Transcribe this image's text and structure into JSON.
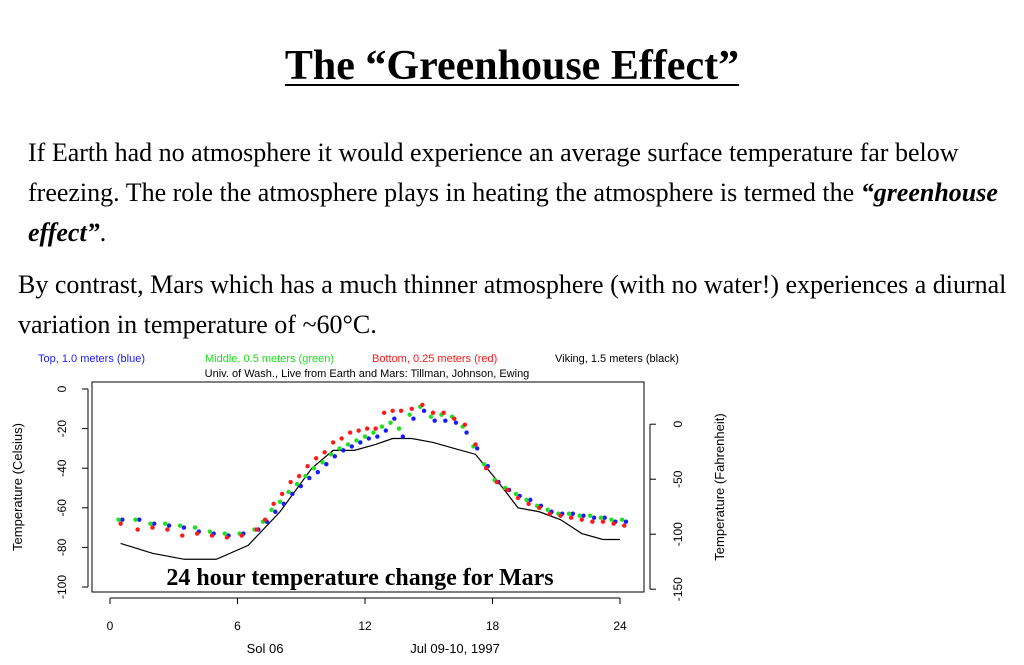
{
  "slide": {
    "title": "The “Greenhouse Effect”",
    "para1_before": "If Earth had no atmosphere it would experience an average surface temperature far below freezing.  The role the atmosphere plays in heating the atmosphere is termed the ",
    "para1_emphasis": "“greenhouse effect”",
    "para1_after": ".",
    "para2": "By contrast, Mars which has a much thinner atmosphere (with no water!) experiences a diurnal variation in temperature of ~60°C.",
    "caption": "24 hour temperature change for Mars"
  },
  "chart_data": {
    "type": "scatter",
    "legend": [
      {
        "text": "Top, 1.0 meters (blue)",
        "color": "#1a1aff"
      },
      {
        "text": "Middle, 0.5 meters (green)",
        "color": "#1ee01e"
      },
      {
        "text": "Bottom, 0.25 meters (red)",
        "color": "#ff1a1a"
      },
      {
        "text": "Viking, 1.5 meters (black)",
        "color": "#000000"
      }
    ],
    "subtitle": "Univ. of Wash., Live from Earth and Mars:  Tillman, Johnson, Ewing",
    "ylabel": "Temperature (Celsius)",
    "y2label": "Temperature (Fahrenheit)",
    "xlabel_left": "Sol 06",
    "xlabel_right": "Jul 09-10, 1997",
    "xlim": [
      0,
      25
    ],
    "ylim": [
      -100,
      5
    ],
    "xticks": [
      0,
      6,
      12,
      18,
      24
    ],
    "yticks": [
      0,
      -20,
      -40,
      -60,
      -80,
      -100
    ],
    "y2ticks": [
      0,
      -50,
      -100,
      -150
    ],
    "x": [
      0.5,
      1.3,
      2,
      2.7,
      3.4,
      4.1,
      4.8,
      5.5,
      6.2,
      6.9,
      7.3,
      7.7,
      8.1,
      8.5,
      8.9,
      9.3,
      9.7,
      10.1,
      10.5,
      10.9,
      11.3,
      11.7,
      12.1,
      12.5,
      12.9,
      13.3,
      13.7,
      14.2,
      14.7,
      15.2,
      15.7,
      16.2,
      16.7,
      17.2,
      17.7,
      18.2,
      18.7,
      19.2,
      19.7,
      20.2,
      20.7,
      21.2,
      21.7,
      22.2,
      22.7,
      23.2,
      23.7,
      24.2
    ],
    "series": [
      {
        "name": "Top, 1.0 meters (blue)",
        "color": "#1a1aff",
        "offset": 0.08,
        "values": [
          -66,
          -66,
          -68,
          -69,
          -70,
          -72,
          -73,
          -74,
          -73,
          -71,
          -67,
          -62,
          -58,
          -53,
          -49,
          -45,
          -42,
          -38,
          -34,
          -31,
          -29,
          -27,
          -25,
          -24,
          -21,
          -15,
          -24,
          -15,
          -11,
          -16,
          -16,
          -17,
          -22,
          -30,
          -39,
          -47,
          -51,
          -54,
          -56,
          -59,
          -62,
          -63,
          -63,
          -64,
          -65,
          -65,
          -67,
          -67
        ]
      },
      {
        "name": "Middle, 0.5 meters (green)",
        "color": "#1ee01e",
        "offset": -0.1,
        "values": [
          -66,
          -66,
          -68,
          -68,
          -69,
          -70,
          -72,
          -73,
          -73,
          -71,
          -67,
          -61,
          -57,
          -52,
          -48,
          -44,
          -40,
          -37,
          -33,
          -30,
          -28,
          -26,
          -24,
          -22,
          -19,
          -17,
          -20,
          -13,
          -9,
          -14,
          -13,
          -14,
          -19,
          -29,
          -38,
          -46,
          -50,
          -53,
          -56,
          -59,
          -61,
          -63,
          -63,
          -64,
          -64,
          -65,
          -66,
          -66
        ]
      },
      {
        "name": "Bottom, 0.25 meters (red)",
        "color": "#ff1a1a",
        "offset": 0.0,
        "values": [
          -68,
          -71,
          -70,
          -71,
          -74,
          -73,
          -74,
          -75,
          -74,
          -71,
          -66,
          -58,
          -53,
          -47,
          -44,
          -39,
          -35,
          -32,
          -27,
          -25,
          -22,
          -21,
          -20,
          -20,
          -12,
          -11,
          -11,
          -10,
          -8,
          -12,
          -12,
          -15,
          -18,
          -28,
          -40,
          -47,
          -51,
          -55,
          -58,
          -60,
          -63,
          -64,
          -65,
          -66,
          -67,
          -67,
          -68,
          -69
        ]
      }
    ],
    "viking": {
      "name": "Viking, 1.5 meters (black)",
      "color": "#000000",
      "x": [
        0.5,
        2,
        3.5,
        5,
        6.5,
        8,
        9.5,
        10.5,
        11.5,
        12.5,
        13.3,
        14.2,
        15.2,
        16.2,
        17.2,
        18.2,
        19.2,
        20.2,
        21.2,
        22.2,
        23.2,
        24
      ],
      "values": [
        -78,
        -83,
        -86,
        -86,
        -79,
        -62,
        -40,
        -31,
        -31,
        -28,
        -25,
        -25,
        -27,
        -30,
        -33,
        -46,
        -60,
        -62,
        -66,
        -73,
        -76,
        -76
      ]
    }
  }
}
